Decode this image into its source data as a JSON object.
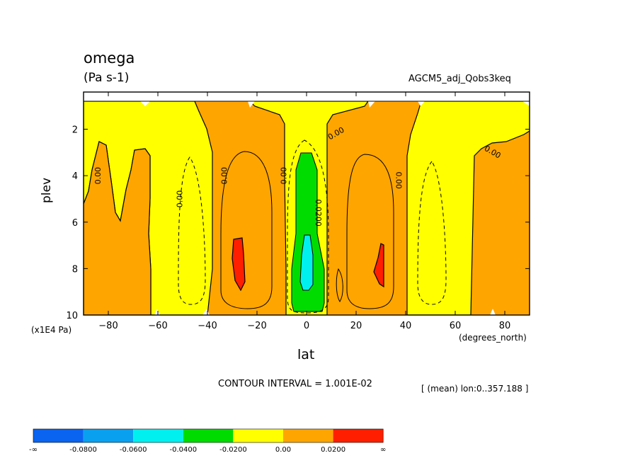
{
  "chart_data": {
    "type": "heatmap",
    "title": "omega",
    "units": "(Pa s-1)",
    "dataset": "AGCM5_adj_Qobs3keq",
    "xlabel": "lat",
    "ylabel": "plev",
    "x_unit": "(degrees_north)",
    "y_unit": "(x1E4 Pa)",
    "xlim": [
      -90,
      90
    ],
    "ylim": [
      10,
      0.4
    ],
    "x_ticks": [
      -80,
      -60,
      -40,
      -20,
      0,
      20,
      40,
      60,
      80
    ],
    "y_ticks": [
      2,
      4,
      6,
      8,
      10
    ],
    "contour_interval": "CONTOUR INTERVAL = 1.001E-02",
    "mean_info": "[ (mean) lon:0..357.188 ]",
    "contour_labels": [
      {
        "text": "0.00",
        "lat": -84,
        "plev": 4.0,
        "angle": -90
      },
      {
        "text": "0.00",
        "lat": -51,
        "plev": 5.0,
        "angle": -90
      },
      {
        "text": "0.00",
        "lat": -33,
        "plev": 4.0,
        "angle": -90
      },
      {
        "text": "0.00",
        "lat": -9,
        "plev": 4.0,
        "angle": -90
      },
      {
        "text": "0.0200",
        "lat": 4.5,
        "plev": 5.6,
        "angle": 90
      },
      {
        "text": "0.00",
        "lat": 12,
        "plev": 2.2,
        "angle": -30
      },
      {
        "text": "0.00",
        "lat": 37,
        "plev": 4.2,
        "angle": 90
      },
      {
        "text": "0.00",
        "lat": 75,
        "plev": 3.0,
        "angle": 30
      }
    ],
    "colorbar": {
      "colors": [
        "#0a64f0",
        "#0aa0f0",
        "#00f0f0",
        "#00dc00",
        "#ffff00",
        "#ffa500",
        "#ff1e00"
      ],
      "labels": [
        "-∞",
        "-0.0800",
        "-0.0600",
        "-0.0400",
        "-0.0200",
        "0.00",
        "0.0200",
        "∞"
      ]
    }
  }
}
